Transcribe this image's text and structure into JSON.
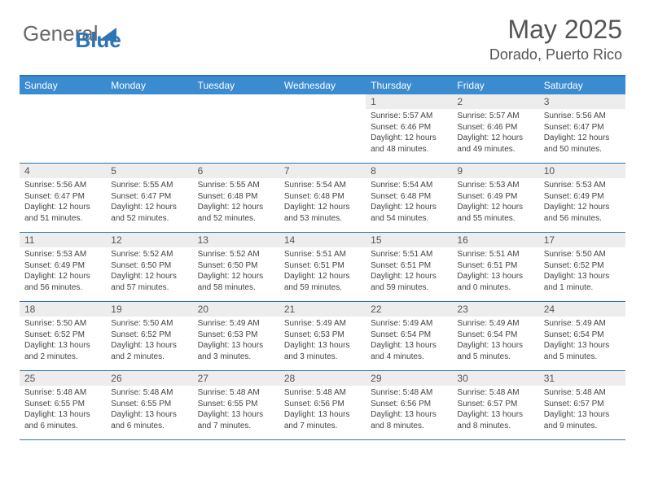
{
  "logo": {
    "general": "General",
    "blue": "Blue"
  },
  "title": "May 2025",
  "location": "Dorado, Puerto Rico",
  "colors": {
    "header_bar": "#3b8bd0",
    "border": "#2b74b8",
    "daynum_bg": "#ededed",
    "text": "#444444",
    "title_text": "#555555"
  },
  "day_names": [
    "Sunday",
    "Monday",
    "Tuesday",
    "Wednesday",
    "Thursday",
    "Friday",
    "Saturday"
  ],
  "weeks": [
    [
      {
        "n": "",
        "sr": "",
        "ss": "",
        "d1": "",
        "d2": ""
      },
      {
        "n": "",
        "sr": "",
        "ss": "",
        "d1": "",
        "d2": ""
      },
      {
        "n": "",
        "sr": "",
        "ss": "",
        "d1": "",
        "d2": ""
      },
      {
        "n": "",
        "sr": "",
        "ss": "",
        "d1": "",
        "d2": ""
      },
      {
        "n": "1",
        "sr": "Sunrise: 5:57 AM",
        "ss": "Sunset: 6:46 PM",
        "d1": "Daylight: 12 hours",
        "d2": "and 48 minutes."
      },
      {
        "n": "2",
        "sr": "Sunrise: 5:57 AM",
        "ss": "Sunset: 6:46 PM",
        "d1": "Daylight: 12 hours",
        "d2": "and 49 minutes."
      },
      {
        "n": "3",
        "sr": "Sunrise: 5:56 AM",
        "ss": "Sunset: 6:47 PM",
        "d1": "Daylight: 12 hours",
        "d2": "and 50 minutes."
      }
    ],
    [
      {
        "n": "4",
        "sr": "Sunrise: 5:56 AM",
        "ss": "Sunset: 6:47 PM",
        "d1": "Daylight: 12 hours",
        "d2": "and 51 minutes."
      },
      {
        "n": "5",
        "sr": "Sunrise: 5:55 AM",
        "ss": "Sunset: 6:47 PM",
        "d1": "Daylight: 12 hours",
        "d2": "and 52 minutes."
      },
      {
        "n": "6",
        "sr": "Sunrise: 5:55 AM",
        "ss": "Sunset: 6:48 PM",
        "d1": "Daylight: 12 hours",
        "d2": "and 52 minutes."
      },
      {
        "n": "7",
        "sr": "Sunrise: 5:54 AM",
        "ss": "Sunset: 6:48 PM",
        "d1": "Daylight: 12 hours",
        "d2": "and 53 minutes."
      },
      {
        "n": "8",
        "sr": "Sunrise: 5:54 AM",
        "ss": "Sunset: 6:48 PM",
        "d1": "Daylight: 12 hours",
        "d2": "and 54 minutes."
      },
      {
        "n": "9",
        "sr": "Sunrise: 5:53 AM",
        "ss": "Sunset: 6:49 PM",
        "d1": "Daylight: 12 hours",
        "d2": "and 55 minutes."
      },
      {
        "n": "10",
        "sr": "Sunrise: 5:53 AM",
        "ss": "Sunset: 6:49 PM",
        "d1": "Daylight: 12 hours",
        "d2": "and 56 minutes."
      }
    ],
    [
      {
        "n": "11",
        "sr": "Sunrise: 5:53 AM",
        "ss": "Sunset: 6:49 PM",
        "d1": "Daylight: 12 hours",
        "d2": "and 56 minutes."
      },
      {
        "n": "12",
        "sr": "Sunrise: 5:52 AM",
        "ss": "Sunset: 6:50 PM",
        "d1": "Daylight: 12 hours",
        "d2": "and 57 minutes."
      },
      {
        "n": "13",
        "sr": "Sunrise: 5:52 AM",
        "ss": "Sunset: 6:50 PM",
        "d1": "Daylight: 12 hours",
        "d2": "and 58 minutes."
      },
      {
        "n": "14",
        "sr": "Sunrise: 5:51 AM",
        "ss": "Sunset: 6:51 PM",
        "d1": "Daylight: 12 hours",
        "d2": "and 59 minutes."
      },
      {
        "n": "15",
        "sr": "Sunrise: 5:51 AM",
        "ss": "Sunset: 6:51 PM",
        "d1": "Daylight: 12 hours",
        "d2": "and 59 minutes."
      },
      {
        "n": "16",
        "sr": "Sunrise: 5:51 AM",
        "ss": "Sunset: 6:51 PM",
        "d1": "Daylight: 13 hours",
        "d2": "and 0 minutes."
      },
      {
        "n": "17",
        "sr": "Sunrise: 5:50 AM",
        "ss": "Sunset: 6:52 PM",
        "d1": "Daylight: 13 hours",
        "d2": "and 1 minute."
      }
    ],
    [
      {
        "n": "18",
        "sr": "Sunrise: 5:50 AM",
        "ss": "Sunset: 6:52 PM",
        "d1": "Daylight: 13 hours",
        "d2": "and 2 minutes."
      },
      {
        "n": "19",
        "sr": "Sunrise: 5:50 AM",
        "ss": "Sunset: 6:52 PM",
        "d1": "Daylight: 13 hours",
        "d2": "and 2 minutes."
      },
      {
        "n": "20",
        "sr": "Sunrise: 5:49 AM",
        "ss": "Sunset: 6:53 PM",
        "d1": "Daylight: 13 hours",
        "d2": "and 3 minutes."
      },
      {
        "n": "21",
        "sr": "Sunrise: 5:49 AM",
        "ss": "Sunset: 6:53 PM",
        "d1": "Daylight: 13 hours",
        "d2": "and 3 minutes."
      },
      {
        "n": "22",
        "sr": "Sunrise: 5:49 AM",
        "ss": "Sunset: 6:54 PM",
        "d1": "Daylight: 13 hours",
        "d2": "and 4 minutes."
      },
      {
        "n": "23",
        "sr": "Sunrise: 5:49 AM",
        "ss": "Sunset: 6:54 PM",
        "d1": "Daylight: 13 hours",
        "d2": "and 5 minutes."
      },
      {
        "n": "24",
        "sr": "Sunrise: 5:49 AM",
        "ss": "Sunset: 6:54 PM",
        "d1": "Daylight: 13 hours",
        "d2": "and 5 minutes."
      }
    ],
    [
      {
        "n": "25",
        "sr": "Sunrise: 5:48 AM",
        "ss": "Sunset: 6:55 PM",
        "d1": "Daylight: 13 hours",
        "d2": "and 6 minutes."
      },
      {
        "n": "26",
        "sr": "Sunrise: 5:48 AM",
        "ss": "Sunset: 6:55 PM",
        "d1": "Daylight: 13 hours",
        "d2": "and 6 minutes."
      },
      {
        "n": "27",
        "sr": "Sunrise: 5:48 AM",
        "ss": "Sunset: 6:55 PM",
        "d1": "Daylight: 13 hours",
        "d2": "and 7 minutes."
      },
      {
        "n": "28",
        "sr": "Sunrise: 5:48 AM",
        "ss": "Sunset: 6:56 PM",
        "d1": "Daylight: 13 hours",
        "d2": "and 7 minutes."
      },
      {
        "n": "29",
        "sr": "Sunrise: 5:48 AM",
        "ss": "Sunset: 6:56 PM",
        "d1": "Daylight: 13 hours",
        "d2": "and 8 minutes."
      },
      {
        "n": "30",
        "sr": "Sunrise: 5:48 AM",
        "ss": "Sunset: 6:57 PM",
        "d1": "Daylight: 13 hours",
        "d2": "and 8 minutes."
      },
      {
        "n": "31",
        "sr": "Sunrise: 5:48 AM",
        "ss": "Sunset: 6:57 PM",
        "d1": "Daylight: 13 hours",
        "d2": "and 9 minutes."
      }
    ]
  ]
}
